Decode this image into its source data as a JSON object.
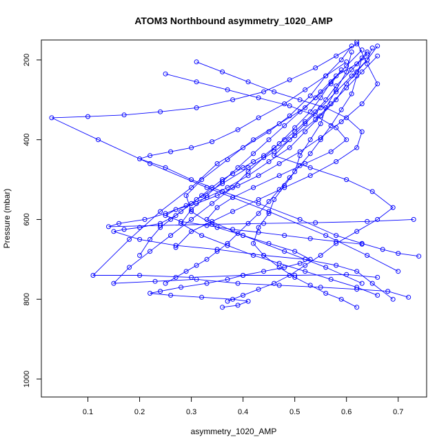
{
  "chart_data": {
    "type": "scatter",
    "title": "ATOM3 Northbound asymmetry_1020_AMP",
    "xlabel": "asymmetry_1020_AMP",
    "ylabel": "Pressure (mbar)",
    "xlim": [
      0.01,
      0.755
    ],
    "ylim": [
      1045,
      150
    ],
    "y_reversed": true,
    "x_ticks": [
      0.1,
      0.2,
      0.3,
      0.4,
      0.5,
      0.6,
      0.7
    ],
    "x_tick_labels": [
      "0.1",
      "0.2",
      "0.3",
      "0.4",
      "0.5",
      "0.6",
      "0.7"
    ],
    "y_ticks": [
      200,
      400,
      600,
      800,
      1000
    ],
    "y_tick_labels": [
      "200",
      "400",
      "600",
      "800",
      "1000"
    ],
    "grid": false,
    "legend": "none",
    "series_color": "#0000ff",
    "series": [
      {
        "x": [
          0.64,
          0.62,
          0.58,
          0.55,
          0.52,
          0.47,
          0.42,
          0.37,
          0.32,
          0.29,
          0.3,
          0.35,
          0.4,
          0.45,
          0.5,
          0.53,
          0.51,
          0.48,
          0.44,
          0.4,
          0.37,
          0.33,
          0.28,
          0.24,
          0.22,
          0.26,
          0.32,
          0.38,
          0.41,
          0.39,
          0.36
        ],
        "y": [
          180,
          210,
          240,
          280,
          320,
          360,
          400,
          450,
          500,
          540,
          580,
          620,
          640,
          660,
          680,
          700,
          710,
          720,
          730,
          740,
          750,
          760,
          770,
          780,
          785,
          790,
          795,
          800,
          805,
          815,
          820
        ]
      },
      {
        "x": [
          0.66,
          0.63,
          0.6,
          0.57,
          0.54,
          0.5,
          0.46,
          0.41,
          0.36,
          0.31,
          0.27,
          0.24,
          0.2,
          0.17,
          0.15,
          0.2,
          0.27,
          0.35,
          0.44,
          0.52,
          0.58,
          0.62,
          0.65,
          0.69
        ],
        "y": [
          190,
          230,
          270,
          310,
          350,
          390,
          430,
          470,
          510,
          550,
          590,
          610,
          620,
          625,
          630,
          650,
          665,
          675,
          690,
          700,
          715,
          730,
          760,
          800
        ]
      },
      {
        "x": [
          0.61,
          0.59,
          0.56,
          0.53,
          0.49,
          0.45,
          0.4,
          0.35,
          0.3,
          0.24,
          0.18,
          0.11,
          0.2,
          0.3,
          0.4,
          0.5,
          0.6,
          0.66
        ],
        "y": [
          165,
          200,
          240,
          290,
          340,
          380,
          420,
          460,
          520,
          580,
          650,
          740,
          740,
          745,
          740,
          740,
          738,
          745
        ]
      },
      {
        "x": [
          0.63,
          0.6,
          0.57,
          0.55,
          0.53,
          0.5,
          0.47,
          0.44,
          0.41,
          0.38,
          0.34,
          0.3,
          0.26,
          0.22,
          0.18,
          0.15,
          0.23,
          0.31,
          0.39,
          0.47,
          0.55,
          0.62,
          0.68,
          0.72
        ],
        "y": [
          175,
          215,
          255,
          295,
          330,
          370,
          410,
          445,
          480,
          520,
          560,
          600,
          640,
          680,
          720,
          760,
          755,
          750,
          760,
          765,
          770,
          775,
          780,
          795
        ]
      },
      {
        "x": [
          0.62,
          0.58,
          0.54,
          0.49,
          0.44,
          0.38,
          0.31,
          0.24,
          0.17,
          0.1,
          0.03,
          0.12,
          0.22,
          0.33,
          0.45,
          0.56,
          0.64,
          0.7
        ],
        "y": [
          160,
          190,
          220,
          250,
          280,
          300,
          320,
          330,
          338,
          342,
          345,
          400,
          460,
          520,
          580,
          640,
          690,
          730
        ]
      },
      {
        "x": [
          0.65,
          0.64,
          0.62,
          0.6,
          0.58,
          0.55,
          0.52,
          0.49,
          0.45,
          0.41,
          0.37,
          0.33,
          0.29,
          0.25,
          0.21,
          0.16,
          0.14,
          0.24,
          0.34,
          0.44,
          0.54,
          0.64,
          0.73
        ],
        "y": [
          170,
          200,
          230,
          260,
          300,
          340,
          380,
          420,
          455,
          490,
          520,
          545,
          565,
          585,
          600,
          610,
          618,
          615,
          612,
          610,
          608,
          605,
          600
        ]
      },
      {
        "x": [
          0.6,
          0.56,
          0.52,
          0.48,
          0.43,
          0.39,
          0.34,
          0.3,
          0.26,
          0.22,
          0.2,
          0.25,
          0.3,
          0.36,
          0.43,
          0.51,
          0.58,
          0.63,
          0.67,
          0.7,
          0.74
        ],
        "y": [
          205,
          240,
          275,
          310,
          345,
          375,
          405,
          420,
          430,
          440,
          448,
          470,
          500,
          530,
          560,
          600,
          640,
          660,
          675,
          685,
          692
        ]
      },
      {
        "x": [
          0.64,
          0.61,
          0.58,
          0.56,
          0.54,
          0.52,
          0.5,
          0.48,
          0.46,
          0.44,
          0.42,
          0.4,
          0.38,
          0.36,
          0.34,
          0.32,
          0.3,
          0.28,
          0.26,
          0.24,
          0.22,
          0.2
        ],
        "y": [
          185,
          225,
          265,
          300,
          330,
          355,
          380,
          400,
          420,
          440,
          455,
          470,
          485,
          500,
          520,
          540,
          560,
          580,
          600,
          620,
          650,
          690
        ]
      },
      {
        "x": [
          0.62,
          0.64,
          0.66,
          0.63,
          0.59,
          0.55,
          0.51,
          0.47,
          0.43,
          0.39,
          0.35,
          0.31,
          0.27,
          0.25,
          0.28,
          0.33,
          0.38,
          0.43,
          0.48,
          0.53,
          0.58,
          0.63
        ],
        "y": [
          155,
          210,
          260,
          310,
          355,
          395,
          430,
          460,
          490,
          515,
          540,
          560,
          575,
          590,
          605,
          615,
          625,
          632,
          640,
          648,
          655,
          662
        ]
      },
      {
        "x": [
          0.63,
          0.62,
          0.61,
          0.59,
          0.57,
          0.55,
          0.53,
          0.51,
          0.49,
          0.47,
          0.45,
          0.43,
          0.41,
          0.39,
          0.37,
          0.35,
          0.33,
          0.31,
          0.29,
          0.27,
          0.25
        ],
        "y": [
          195,
          240,
          285,
          325,
          365,
          400,
          435,
          465,
          495,
          525,
          555,
          585,
          610,
          635,
          660,
          680,
          700,
          715,
          730,
          745,
          760
        ]
      },
      {
        "x": [
          0.31,
          0.36,
          0.41,
          0.46,
          0.51,
          0.56,
          0.6,
          0.63,
          0.62,
          0.58,
          0.53,
          0.48,
          0.43,
          0.38,
          0.34,
          0.3,
          0.27
        ],
        "y": [
          205,
          230,
          255,
          280,
          300,
          320,
          345,
          380,
          420,
          455,
          490,
          520,
          550,
          580,
          605,
          630,
          670
        ]
      },
      {
        "x": [
          0.25,
          0.31,
          0.37,
          0.43,
          0.49,
          0.54,
          0.58,
          0.6,
          0.57,
          0.52,
          0.47,
          0.42,
          0.38,
          0.35,
          0.33,
          0.4,
          0.48,
          0.56,
          0.63
        ],
        "y": [
          235,
          255,
          275,
          295,
          315,
          340,
          370,
          400,
          430,
          460,
          490,
          520,
          545,
          570,
          600,
          640,
          680,
          720,
          760
        ]
      },
      {
        "x": [
          0.66,
          0.64,
          0.61,
          0.58,
          0.55,
          0.52,
          0.49,
          0.46,
          0.53,
          0.6,
          0.65,
          0.69,
          0.66,
          0.62,
          0.58,
          0.55,
          0.52,
          0.49,
          0.46,
          0.43,
          0.4,
          0.37
        ],
        "y": [
          165,
          200,
          240,
          280,
          320,
          360,
          400,
          440,
          470,
          500,
          530,
          570,
          600,
          630,
          660,
          690,
          715,
          740,
          760,
          775,
          790,
          805
        ]
      },
      {
        "x": [
          0.59,
          0.57,
          0.54,
          0.51,
          0.48,
          0.45,
          0.42,
          0.39,
          0.36,
          0.33,
          0.3,
          0.28,
          0.32,
          0.37,
          0.42,
          0.47,
          0.52,
          0.57,
          0.62,
          0.66
        ],
        "y": [
          225,
          260,
          295,
          330,
          365,
          400,
          435,
          470,
          505,
          540,
          575,
          610,
          640,
          665,
          690,
          710,
          730,
          750,
          770,
          790
        ]
      },
      {
        "x": [
          0.61,
          0.6,
          0.58,
          0.56,
          0.55,
          0.53,
          0.51,
          0.5,
          0.48,
          0.46,
          0.45,
          0.43,
          0.42,
          0.44,
          0.47,
          0.5,
          0.53,
          0.56,
          0.59,
          0.62
        ],
        "y": [
          180,
          230,
          275,
          320,
          360,
          400,
          440,
          480,
          515,
          550,
          585,
          620,
          660,
          690,
          720,
          745,
          765,
          785,
          800,
          820
        ]
      }
    ]
  }
}
